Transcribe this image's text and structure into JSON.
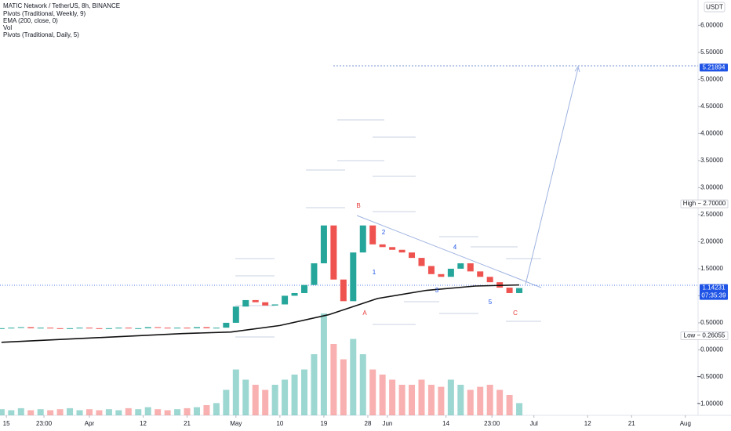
{
  "chart_data": {
    "type": "candlestick",
    "title": "MATIC Network / TetherUS, 8h, BINANCE",
    "indicators": [
      "Pivots (Traditional, Weekly, 9)",
      "EMA (200, close, 0)",
      "Vol",
      "Pivots (Traditional, Daily, 5)"
    ],
    "currency": "USDT",
    "x": [
      13,
      15,
      17,
      19,
      21,
      23,
      25,
      27,
      29,
      31,
      33,
      35,
      37,
      39,
      41,
      43,
      45,
      47,
      49,
      51,
      53,
      55,
      57,
      59,
      61,
      63,
      65,
      67,
      69,
      71,
      73,
      75,
      77,
      79,
      81,
      83,
      85,
      87,
      89,
      91,
      93,
      95,
      97,
      99,
      101,
      103,
      105,
      107,
      109,
      111,
      113,
      115,
      117,
      119
    ],
    "series": [
      {
        "name": "Close",
        "values": [
          0.4,
          0.41,
          0.42,
          0.4,
          0.41,
          0.4,
          0.39,
          0.4,
          0.41,
          0.4,
          0.39,
          0.4,
          0.41,
          0.4,
          0.4,
          0.42,
          0.41,
          0.4,
          0.41,
          0.4,
          0.42,
          0.4,
          0.41,
          0.5,
          0.8,
          0.92,
          0.88,
          0.82,
          0.84,
          1.0,
          1.05,
          1.2,
          1.6,
          2.3,
          1.3,
          0.9,
          1.8,
          2.3,
          1.95,
          1.9,
          1.85,
          1.8,
          1.7,
          1.55,
          1.4,
          1.35,
          1.5,
          1.6,
          1.45,
          1.35,
          1.25,
          1.15,
          1.05,
          1.14231
        ]
      },
      {
        "name": "Vol",
        "axis": "volume",
        "values": [
          6,
          5,
          7,
          5,
          6,
          5,
          6,
          7,
          5,
          6,
          5,
          6,
          5,
          7,
          6,
          8,
          6,
          5,
          6,
          7,
          8,
          10,
          12,
          25,
          45,
          35,
          30,
          25,
          30,
          35,
          40,
          45,
          60,
          100,
          70,
          55,
          75,
          60,
          45,
          40,
          35,
          30,
          30,
          35,
          30,
          28,
          35,
          30,
          25,
          28,
          30,
          25,
          20,
          12
        ]
      },
      {
        "name": "EMA",
        "color": "#111111",
        "x": [
          13,
          50,
          60,
          70,
          80,
          90,
          100,
          110,
          119
        ],
        "values": [
          0.14,
          0.3,
          0.33,
          0.45,
          0.65,
          0.95,
          1.1,
          1.18,
          1.2
        ]
      }
    ],
    "up_color": "#26a69a",
    "down_color": "#ef5350",
    "xlim": [
      12.7,
      155.6
    ],
    "xticks": [
      {
        "value": 14,
        "label": "15"
      },
      {
        "value": 21.7,
        "label": "23:00"
      },
      {
        "value": 31,
        "label": "Apr"
      },
      {
        "value": 42,
        "label": "12"
      },
      {
        "value": 51,
        "label": "21"
      },
      {
        "value": 61,
        "label": "May"
      },
      {
        "value": 70,
        "label": "10"
      },
      {
        "value": 79,
        "label": "19"
      },
      {
        "value": 88,
        "label": "28"
      },
      {
        "value": 92,
        "label": "Jun"
      },
      {
        "value": 104,
        "label": "14"
      },
      {
        "value": 113.4,
        "label": "23:00"
      },
      {
        "value": 122,
        "label": "Jul"
      },
      {
        "value": 133,
        "label": "12"
      },
      {
        "value": 142,
        "label": "21"
      },
      {
        "value": 153,
        "label": "Aug"
      }
    ],
    "ylim": [
      6.4685,
      -1.2108
    ],
    "vlim": [
      0,
      100
    ],
    "yticks": [
      {
        "value": 6,
        "label": "6.00000"
      },
      {
        "value": 5.5,
        "label": "5.50000"
      },
      {
        "value": 5,
        "label": "5.00000"
      },
      {
        "value": 4.5,
        "label": "4.50000"
      },
      {
        "value": 4,
        "label": "4.00000"
      },
      {
        "value": 3.5,
        "label": "3.50000"
      },
      {
        "value": 3,
        "label": "3.00000"
      },
      {
        "value": 2.5,
        "label": "2.50000"
      },
      {
        "value": 2,
        "label": "2.00000"
      },
      {
        "value": 1.5,
        "label": "1.50000"
      },
      {
        "value": 1,
        "label": "1.00000"
      },
      {
        "value": 0.5,
        "label": "0.50000"
      },
      {
        "value": 0,
        "label": "0.00000"
      },
      {
        "value": -0.5,
        "label": "−0.50000"
      },
      {
        "value": -1,
        "label": "−1.00000"
      }
    ],
    "price_tags": [
      {
        "text": "5.21894",
        "value": 5.21894,
        "color": "#1e53e5"
      },
      {
        "text": "High − 2.70000",
        "value": 2.7,
        "color": "#ffffff"
      },
      {
        "text": "1.14231",
        "sub": "07:35:39",
        "value": 1.14231,
        "color": "#1e53e5"
      },
      {
        "text": "Low − 0.26055",
        "value": 0.26055,
        "color": "#ffffff"
      }
    ],
    "annotations": [
      {
        "text": "B",
        "color": "#e53935"
      },
      {
        "text": "A",
        "color": "#e53935"
      },
      {
        "text": "2",
        "color": "#1e53e5"
      },
      {
        "text": "1",
        "color": "#1e53e5"
      },
      {
        "text": "3",
        "color": "#1e53e5"
      },
      {
        "text": "4",
        "color": "#1e53e5"
      },
      {
        "text": "5",
        "color": "#1e53e5"
      },
      {
        "text": "C",
        "color": "#e53935"
      }
    ]
  }
}
